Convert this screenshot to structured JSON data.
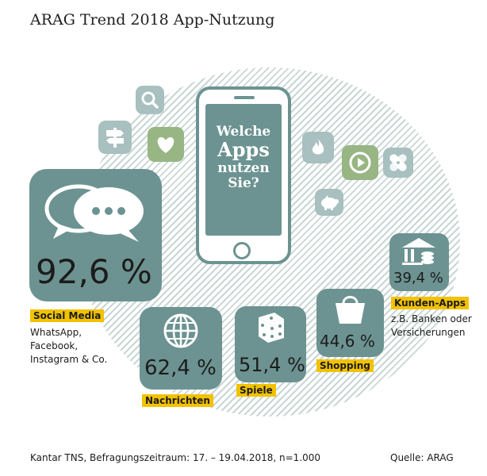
{
  "title": "ARAG Trend 2018 App-Nutzung",
  "phone": {
    "line1": "Welche",
    "line2": "Apps",
    "line3": "nutzen",
    "line4": "Sie?"
  },
  "stats": [
    {
      "id": "social",
      "value": "92,6 %",
      "label": "Social Media",
      "desc": [
        "WhatsApp,",
        "Facebook,",
        "Instagram & Co."
      ]
    },
    {
      "id": "news",
      "value": "62,4 %",
      "label": "Nachrichten"
    },
    {
      "id": "games",
      "value": "51,4 %",
      "label": "Spiele"
    },
    {
      "id": "shopping",
      "value": "44,6 %",
      "label": "Shopping"
    },
    {
      "id": "customer",
      "value": "39,4 %",
      "label": "Kunden-Apps",
      "desc": [
        "z.B. Banken oder",
        "Versicherungen"
      ]
    }
  ],
  "icons": [
    "search-icon",
    "signpost-icon",
    "heart-icon",
    "flame-icon",
    "play-icon",
    "bandage-icon",
    "piggy-bank-icon",
    "speech-bubbles-icon",
    "globe-icon",
    "dice-icon",
    "shopping-bag-icon",
    "bank-icon"
  ],
  "colors": {
    "teal": "#6c9391",
    "light_teal": "#a8c0bf",
    "green": "#98b684",
    "label_yellow": "#f2c200"
  },
  "footer": {
    "source_left": "Kantar TNS, Befragungszeitraum: 17. – 19.04.2018, n=1.000",
    "source_right": "Quelle: ARAG"
  }
}
